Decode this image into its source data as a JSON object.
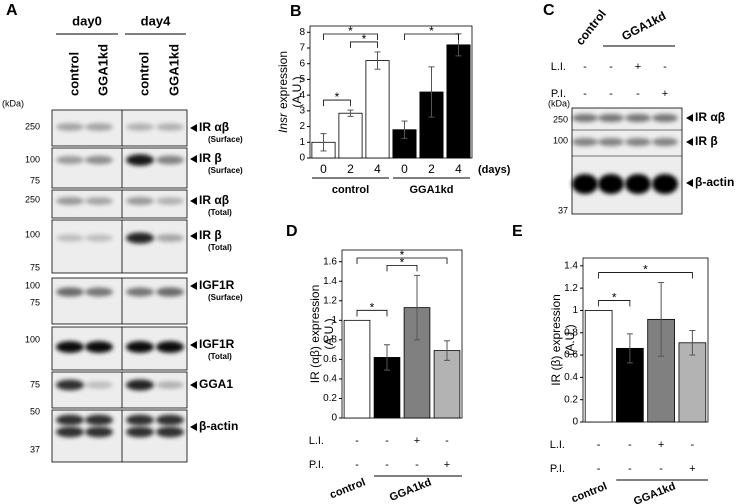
{
  "panels": {
    "A": {
      "letter": "A",
      "groups": [
        "day0",
        "day4"
      ],
      "lanes": [
        "control",
        "GGA1kd",
        "control",
        "GGA1kd"
      ],
      "unit": "(kDa)",
      "blots": [
        {
          "name": "IR αβ",
          "sub": "(Surface)",
          "markers": [
            250
          ]
        },
        {
          "name": "IR β",
          "sub": "(Surface)",
          "markers": [
            100,
            75
          ]
        },
        {
          "name": "IR αβ",
          "sub": "(Total)",
          "markers": [
            250
          ]
        },
        {
          "name": "IR β",
          "sub": "(Total)",
          "markers": [
            100,
            75
          ]
        },
        {
          "name": "IGF1R",
          "sub": "(Surface)",
          "markers": [
            100,
            75
          ]
        },
        {
          "name": "IGF1R",
          "sub": "(Total)",
          "markers": [
            100
          ]
        },
        {
          "name": "GGA1",
          "markers": [
            75
          ]
        },
        {
          "name": "β-actin",
          "markers": [
            50,
            37
          ]
        }
      ]
    },
    "C": {
      "letter": "C",
      "groups": [
        {
          "name": "control",
          "size": 1
        },
        {
          "name": "GGA1kd",
          "size": 3
        }
      ],
      "rows": [
        {
          "name": "L.I.",
          "marks": [
            "-",
            "-",
            "+",
            "-"
          ]
        },
        {
          "name": "P.I.",
          "marks": [
            "-",
            "-",
            "-",
            "+"
          ]
        }
      ],
      "unit": "(kDa)",
      "markers": [
        250,
        100,
        37
      ],
      "bands": [
        "IR αβ",
        "IR β",
        "β-actin"
      ]
    }
  },
  "chart_data": [
    {
      "type": "bar",
      "letter": "B",
      "categories": [
        "0",
        "2",
        "4",
        "0",
        "2",
        "4"
      ],
      "groups": [
        {
          "name": "control",
          "size": 3
        },
        {
          "name": "GGA1kd",
          "size": 3
        }
      ],
      "values": [
        1.0,
        2.85,
        6.2,
        1.8,
        4.2,
        7.2
      ],
      "errors": [
        0.55,
        0.2,
        0.55,
        0.55,
        1.6,
        0.7
      ],
      "colors": [
        "#ffffff",
        "#ffffff",
        "#ffffff",
        "#000000",
        "#000000",
        "#000000"
      ],
      "ylabel": {
        "gene": "Insr",
        "text": "expression",
        "unit": "(A.U.)"
      },
      "xlabel": "(days)",
      "ylim": [
        0,
        8.4
      ],
      "yticks": [
        0,
        1,
        2,
        3,
        4,
        5,
        6,
        7,
        8
      ],
      "significance": [
        {
          "from": 0,
          "to": 1,
          "label": "*"
        },
        {
          "from": 1,
          "to": 2,
          "label": "*"
        },
        {
          "from": 0,
          "to": 2,
          "label": "*"
        },
        {
          "from": 3,
          "to": 5,
          "label": "*"
        }
      ]
    },
    {
      "type": "bar",
      "letter": "D",
      "groups": [
        {
          "name": "control",
          "size": 1
        },
        {
          "name": "GGA1kd",
          "size": 3
        }
      ],
      "rows": [
        {
          "name": "L.I.",
          "marks": [
            "-",
            "-",
            "+",
            "-"
          ]
        },
        {
          "name": "P.I.",
          "marks": [
            "-",
            "-",
            "-",
            "+"
          ]
        }
      ],
      "values": [
        1,
        0.62,
        1.13,
        0.69
      ],
      "errors": [
        null,
        0.13,
        0.33,
        0.1
      ],
      "colors": [
        "#ffffff",
        "#000000",
        "#808080",
        "#b3b3b3"
      ],
      "ylabel": {
        "text": "IR (αβ) expression",
        "unit": "(A.U.)"
      },
      "ylim": [
        0,
        1.72
      ],
      "yticks": [
        0,
        0.2,
        0.4,
        0.6,
        0.8,
        1,
        1.2,
        1.4,
        1.6
      ],
      "significance": [
        {
          "from": 0,
          "to": 1,
          "label": "*"
        },
        {
          "from": 1,
          "to": 2,
          "label": "*"
        },
        {
          "from": 0,
          "to": 3,
          "label": "*"
        }
      ]
    },
    {
      "type": "bar",
      "letter": "E",
      "groups": [
        {
          "name": "control",
          "size": 1
        },
        {
          "name": "GGA1kd",
          "size": 3
        }
      ],
      "rows": [
        {
          "name": "L.I.",
          "marks": [
            "-",
            "-",
            "+",
            "-"
          ]
        },
        {
          "name": "P.I.",
          "marks": [
            "-",
            "-",
            "-",
            "+"
          ]
        }
      ],
      "values": [
        1,
        0.66,
        0.92,
        0.71
      ],
      "errors": [
        null,
        0.13,
        0.33,
        0.11
      ],
      "colors": [
        "#ffffff",
        "#000000",
        "#808080",
        "#b3b3b3"
      ],
      "ylabel": {
        "text": "IR (β) expression",
        "unit": "(A.U.)"
      },
      "ylim": [
        0,
        1.47
      ],
      "yticks": [
        0,
        0.2,
        0.4,
        0.6,
        0.8,
        1,
        1.2,
        1.4
      ],
      "significance": [
        {
          "from": 0,
          "to": 1,
          "label": "*"
        },
        {
          "from": 0,
          "to": 3,
          "label": "*"
        }
      ]
    }
  ]
}
